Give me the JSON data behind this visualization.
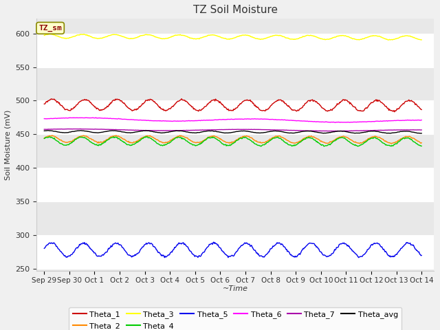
{
  "title": "TZ Soil Moisture",
  "ylabel": "Soil Moisture (mV)",
  "xlabel": "~Time",
  "annotation_text": "TZ_sm",
  "fig_bg": "#f0f0f0",
  "ax_bg": "#e8e8e8",
  "ylim": [
    247,
    622
  ],
  "yticks": [
    250,
    300,
    350,
    400,
    450,
    500,
    550,
    600
  ],
  "series_order": [
    "Theta_1",
    "Theta_2",
    "Theta_3",
    "Theta_4",
    "Theta_5",
    "Theta_6",
    "Theta_7",
    "Theta_avg"
  ],
  "series": {
    "Theta_1": {
      "color": "#cc0000",
      "base": 494,
      "amp": 8,
      "freq": 1.55,
      "phase": 0.0,
      "trend": -0.3
    },
    "Theta_2": {
      "color": "#ff8800",
      "base": 443,
      "amp": 5,
      "freq": 1.55,
      "phase": 0.3,
      "trend": -0.3
    },
    "Theta_3": {
      "color": "#ffff00",
      "base": 596,
      "amp": 3,
      "freq": 1.55,
      "phase": 0.5,
      "trend": -0.5
    },
    "Theta_4": {
      "color": "#00cc00",
      "base": 440,
      "amp": 6,
      "freq": 1.55,
      "phase": 0.6,
      "trend": -0.3
    },
    "Theta_5": {
      "color": "#0000ee",
      "base": 278,
      "amp": 10,
      "freq": 1.55,
      "phase": 0.2,
      "trend": 0.0
    },
    "Theta_6": {
      "color": "#ff00ff",
      "base": 473,
      "amp": 2,
      "freq": 0.3,
      "phase": 0.0,
      "trend": -0.8
    },
    "Theta_7": {
      "color": "#aa00aa",
      "base": 457,
      "amp": 1,
      "freq": 0.3,
      "phase": 0.3,
      "trend": -0.3
    },
    "Theta_avg": {
      "color": "#000000",
      "base": 454,
      "amp": 1.5,
      "freq": 1.55,
      "phase": 0.8,
      "trend": -0.2
    }
  },
  "xtick_labels": [
    "Sep 29",
    "Sep 30",
    "Oct 1",
    "Oct 2",
    "Oct 3",
    "Oct 4",
    "Oct 5",
    "Oct 6",
    "Oct 7",
    "Oct 8",
    "Oct 9",
    "Oct 10",
    "Oct 11",
    "Oct 12",
    "Oct 13",
    "Oct 14"
  ],
  "xtick_positions": [
    0,
    1,
    2,
    3,
    4,
    5,
    6,
    7,
    8,
    9,
    10,
    11,
    12,
    13,
    14,
    15
  ],
  "legend_row1": [
    "Theta_1",
    "Theta_2",
    "Theta_3",
    "Theta_4",
    "Theta_5",
    "Theta_6"
  ],
  "legend_row2": [
    "Theta_7",
    "Theta_avg"
  ]
}
